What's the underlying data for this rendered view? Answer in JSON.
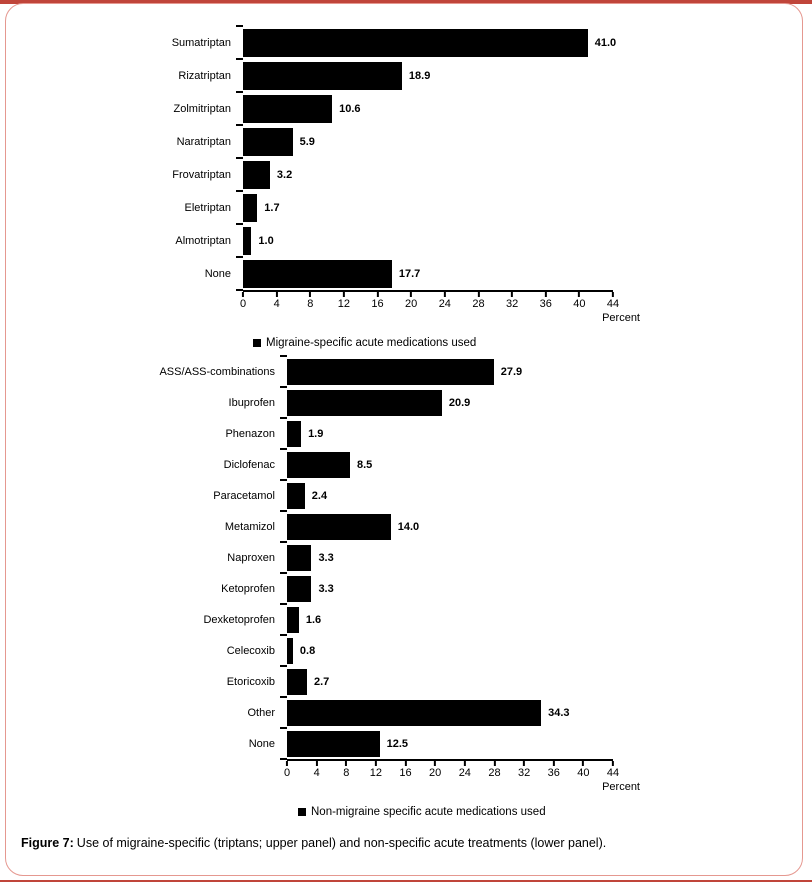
{
  "page": {
    "accent_red": "#c0453a",
    "frame_border_color": "#e59890"
  },
  "figure_caption": {
    "label": "Figure 7:",
    "text": "Use of migraine-specific (triptans; upper panel) and non-specific acute treatments (lower panel)."
  },
  "chart_data": [
    {
      "type": "bar",
      "orientation": "horizontal",
      "title": "",
      "categories": [
        "Sumatriptan",
        "Rizatriptan",
        "Zolmitriptan",
        "Naratriptan",
        "Frovatriptan",
        "Eletriptan",
        "Almotriptan",
        "None"
      ],
      "values": [
        41.0,
        18.9,
        10.6,
        5.9,
        3.2,
        1.7,
        1.0,
        17.7
      ],
      "value_labels": [
        "41.0",
        "18.9",
        "10.6",
        "5.9",
        "3.2",
        "1.7",
        "1.0",
        "17.7"
      ],
      "xlim": [
        0,
        44
      ],
      "xticks": [
        0,
        4,
        8,
        12,
        16,
        20,
        24,
        28,
        32,
        36,
        40,
        44
      ],
      "xlabel": "Percent",
      "legend": "Migraine-specific acute medications used",
      "legend_position": "bottom",
      "bar_color": "#000000",
      "grid": false
    },
    {
      "type": "bar",
      "orientation": "horizontal",
      "title": "",
      "categories": [
        "ASS/ASS-combinations",
        "Ibuprofen",
        "Phenazon",
        "Diclofenac",
        "Paracetamol",
        "Metamizol",
        "Naproxen",
        "Ketoprofen",
        "Dexketoprofen",
        "Celecoxib",
        "Etoricoxib",
        "Other",
        "None"
      ],
      "values": [
        27.9,
        20.9,
        1.9,
        8.5,
        2.4,
        14.0,
        3.3,
        3.3,
        1.6,
        0.8,
        2.7,
        34.3,
        12.5
      ],
      "value_labels": [
        "27.9",
        "20.9",
        "1.9",
        "8.5",
        "2.4",
        "14.0",
        "3.3",
        "3.3",
        "1.6",
        "0.8",
        "2.7",
        "34.3",
        "12.5"
      ],
      "xlim": [
        0,
        44
      ],
      "xticks": [
        0,
        4,
        8,
        12,
        16,
        20,
        24,
        28,
        32,
        36,
        40,
        44
      ],
      "xlabel": "Percent",
      "legend": "Non-migraine specific acute medications used",
      "legend_position": "bottom",
      "bar_color": "#000000",
      "grid": false
    }
  ]
}
